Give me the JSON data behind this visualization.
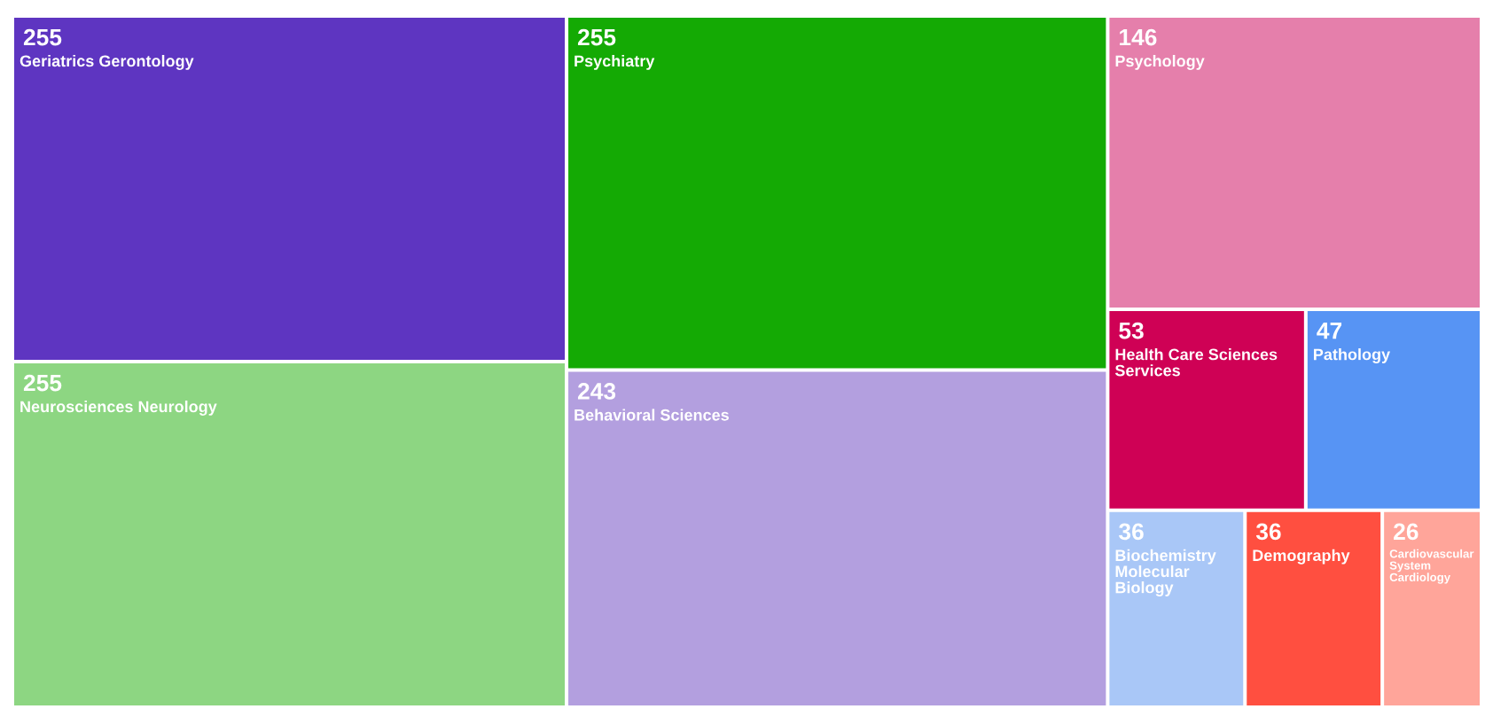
{
  "chart_data": {
    "type": "other",
    "categories": [
      "Geriatrics Gerontology",
      "Neurosciences Neurology",
      "Psychiatry",
      "Behavioral Sciences",
      "Psychology",
      "Health Care Sciences Services",
      "Pathology",
      "Biochemistry Molecular Biology",
      "Demography",
      "Cardiovascular System Cardiology"
    ],
    "values": [
      255,
      255,
      255,
      243,
      146,
      53,
      47,
      36,
      36,
      26
    ],
    "colors": [
      "#5e35c1",
      "#8dd682",
      "#14aa04",
      "#b39fdf",
      "#e57fab",
      "#cf0155",
      "#5794f4",
      "#a9c7f7",
      "#ff4f40",
      "#ffa59a"
    ],
    "data_labels": true
  }
}
